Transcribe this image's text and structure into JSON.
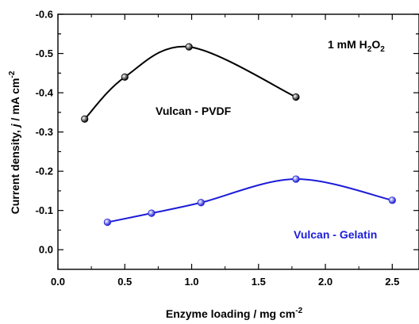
{
  "chart_data": {
    "type": "line",
    "xlabel": "Enzyme loading / mg cm",
    "xlabel_sup": "-2",
    "ylabel_main": "Current density, ",
    "ylabel_j": "j",
    "ylabel_unit": "  / mA cm",
    "ylabel_sup": "-2",
    "xlim": [
      0.0,
      2.7
    ],
    "ylim": [
      0.05,
      -0.6
    ],
    "y_axis_inverted": true,
    "xticks": [
      "0.0",
      "0.5",
      "1.0",
      "1.5",
      "2.0",
      "2.5"
    ],
    "yticks": [
      "0.0",
      "-0.1",
      "-0.2",
      "-0.3",
      "-0.4",
      "-0.5",
      "-0.6"
    ],
    "grid": false,
    "smooth_lines": true,
    "series": [
      {
        "name": "Vulcan - PVDF",
        "color": "#000000",
        "x": [
          0.2,
          0.5,
          0.98,
          1.78
        ],
        "y": [
          -0.333,
          -0.44,
          -0.517,
          -0.389
        ]
      },
      {
        "name": "Vulcan - Gelatin",
        "color": "#1c1cd9",
        "x": [
          0.37,
          0.7,
          1.07,
          1.78,
          2.5
        ],
        "y": [
          -0.07,
          -0.093,
          -0.12,
          -0.18,
          -0.126
        ]
      }
    ],
    "annotation": {
      "prefix": "1 mM H",
      "sub1": "2",
      "mid": "O",
      "sub2": "2"
    }
  }
}
